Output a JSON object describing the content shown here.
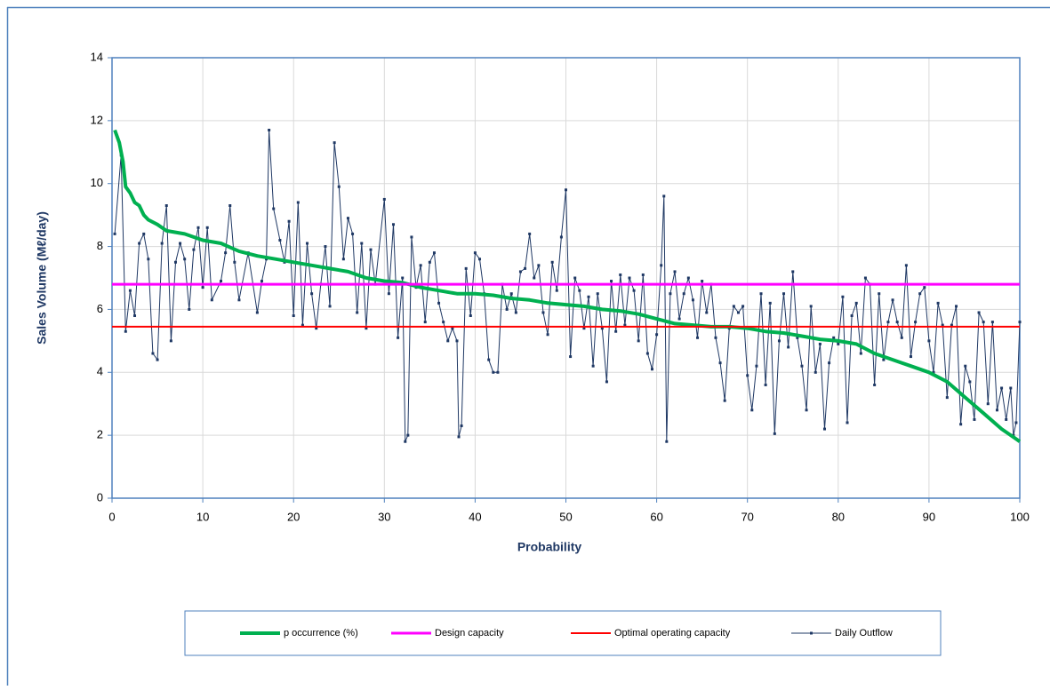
{
  "chart_data": {
    "type": "line",
    "y_label": "Sales Volume (Mℓ/day)",
    "x_label": "Probability",
    "xlim": [
      0,
      100
    ],
    "xticks": [
      0,
      10,
      20,
      30,
      40,
      50,
      60,
      70,
      80,
      90,
      100
    ],
    "ylim": [
      0,
      14
    ],
    "yticks": [
      0,
      2,
      4,
      6,
      8,
      10,
      12,
      14
    ],
    "grid": true,
    "legend": "bottom",
    "series": [
      {
        "name": "p occurrence (%)",
        "color": "#00b050",
        "line_width": 4,
        "x": [
          0.3,
          0.8,
          1.2,
          1.5,
          2,
          2.5,
          3,
          3.5,
          4,
          5,
          6,
          8,
          10,
          12,
          14,
          16,
          18,
          20,
          22,
          24,
          26,
          28,
          30,
          32,
          34,
          36,
          38,
          40,
          42,
          44,
          46,
          48,
          50,
          52,
          54,
          56,
          58,
          60,
          62,
          64,
          66,
          68,
          70,
          72,
          74,
          76,
          78,
          80,
          82,
          84,
          86,
          88,
          90,
          92,
          94,
          96,
          98,
          99,
          100
        ],
        "values": [
          11.7,
          11.3,
          10.7,
          9.9,
          9.7,
          9.4,
          9.3,
          9.0,
          8.85,
          8.7,
          8.5,
          8.4,
          8.2,
          8.1,
          7.85,
          7.7,
          7.6,
          7.5,
          7.4,
          7.3,
          7.2,
          7.0,
          6.9,
          6.85,
          6.7,
          6.6,
          6.5,
          6.5,
          6.45,
          6.35,
          6.3,
          6.2,
          6.15,
          6.1,
          6.0,
          5.95,
          5.85,
          5.7,
          5.55,
          5.5,
          5.45,
          5.45,
          5.4,
          5.3,
          5.25,
          5.15,
          5.05,
          5.0,
          4.9,
          4.6,
          4.4,
          4.2,
          4.0,
          3.7,
          3.2,
          2.7,
          2.2,
          2.0,
          1.8
        ]
      },
      {
        "name": "Design capacity",
        "color": "#ff00ff",
        "line_width": 3,
        "x": [
          0,
          100
        ],
        "values": [
          6.8,
          6.8
        ]
      },
      {
        "name": "Optimal operating capacity",
        "color": "#ff0000",
        "line_width": 2,
        "x": [
          0,
          100
        ],
        "values": [
          5.45,
          5.45
        ]
      },
      {
        "name": "Daily Outflow",
        "color": "#1f3864",
        "line_width": 1,
        "marker": "square",
        "x": [
          0.3,
          1,
          1.5,
          2,
          2.5,
          3,
          3.5,
          4,
          4.5,
          5,
          5.5,
          6,
          6.5,
          7,
          7.5,
          8,
          8.5,
          9,
          9.5,
          10,
          10.5,
          11,
          12,
          12.5,
          13,
          13.5,
          14,
          15,
          16,
          16.5,
          17,
          17.3,
          17.8,
          18.5,
          19,
          19.5,
          20,
          20.5,
          21,
          21.5,
          22,
          22.5,
          23,
          23.5,
          24,
          24.5,
          25,
          25.5,
          26,
          26.5,
          27,
          27.5,
          28,
          28.5,
          29,
          30,
          30.5,
          31,
          31.5,
          32,
          32.3,
          32.6,
          33,
          33.5,
          34,
          34.5,
          35,
          35.5,
          36,
          36.5,
          37,
          37.5,
          38,
          38.2,
          38.5,
          39,
          39.5,
          40,
          40.5,
          41,
          41.5,
          42,
          42.5,
          43,
          43.5,
          44,
          44.5,
          45,
          45.5,
          46,
          46.5,
          47,
          47.5,
          48,
          48.5,
          49,
          49.5,
          50,
          50.5,
          51,
          51.5,
          52,
          52.5,
          53,
          53.5,
          54,
          54.5,
          55,
          55.5,
          56,
          56.5,
          57,
          57.5,
          58,
          58.5,
          59,
          59.5,
          60,
          60.5,
          60.8,
          61.1,
          61.5,
          62,
          62.5,
          63,
          63.5,
          64,
          64.5,
          65,
          65.5,
          66,
          66.5,
          67,
          67.5,
          68,
          68.5,
          69,
          69.5,
          70,
          70.5,
          71,
          71.5,
          72,
          72.5,
          73,
          73.5,
          74,
          74.5,
          75,
          75.5,
          76,
          76.5,
          77,
          77.5,
          78,
          78.5,
          79,
          79.5,
          80,
          80.5,
          81,
          81.5,
          82,
          82.5,
          83,
          83.5,
          84,
          84.5,
          85,
          85.5,
          86,
          86.5,
          87,
          87.5,
          88,
          88.5,
          89,
          89.5,
          90,
          90.5,
          91,
          91.5,
          92,
          92.5,
          93,
          93.5,
          94,
          94.5,
          95,
          95.5,
          96,
          96.5,
          97,
          97.5,
          98,
          98.5,
          99,
          99.3,
          99.6,
          100
        ],
        "values": [
          8.4,
          10.9,
          5.3,
          6.6,
          5.8,
          8.1,
          8.4,
          7.6,
          4.6,
          4.4,
          8.1,
          9.3,
          5.0,
          7.5,
          8.1,
          7.6,
          6.0,
          7.9,
          8.6,
          6.7,
          8.6,
          6.3,
          6.9,
          7.8,
          9.3,
          7.5,
          6.3,
          7.8,
          5.9,
          6.9,
          7.6,
          11.7,
          9.2,
          8.2,
          7.5,
          8.8,
          5.8,
          9.4,
          5.5,
          8.1,
          6.5,
          5.4,
          6.8,
          8.0,
          6.1,
          11.3,
          9.9,
          7.6,
          8.9,
          8.4,
          5.9,
          8.1,
          5.4,
          7.9,
          6.8,
          9.5,
          6.5,
          8.7,
          5.1,
          7.0,
          1.8,
          2.0,
          8.3,
          6.7,
          7.4,
          5.6,
          7.5,
          7.8,
          6.2,
          5.6,
          5.0,
          5.4,
          5.0,
          1.95,
          2.3,
          7.3,
          5.8,
          7.8,
          7.6,
          6.5,
          4.4,
          4.0,
          4.0,
          6.8,
          6.0,
          6.5,
          5.9,
          7.2,
          7.3,
          8.4,
          7.0,
          7.4,
          5.9,
          5.2,
          7.5,
          6.6,
          8.3,
          9.8,
          4.5,
          7.0,
          6.6,
          5.4,
          6.4,
          4.2,
          6.5,
          5.4,
          3.7,
          6.9,
          5.3,
          7.1,
          5.5,
          7.0,
          6.6,
          5.0,
          7.1,
          4.6,
          4.1,
          5.2,
          7.4,
          9.6,
          1.8,
          6.5,
          7.2,
          5.7,
          6.5,
          7.0,
          6.3,
          5.1,
          6.9,
          5.9,
          6.8,
          5.1,
          4.3,
          3.1,
          5.4,
          6.1,
          5.9,
          6.1,
          3.9,
          2.8,
          4.2,
          6.5,
          3.6,
          6.2,
          2.05,
          5.0,
          6.5,
          4.8,
          7.2,
          5.1,
          4.2,
          2.8,
          6.1,
          4.0,
          4.9,
          2.2,
          4.3,
          5.1,
          4.9,
          6.4,
          2.4,
          5.8,
          6.2,
          4.6,
          7.0,
          6.8,
          3.6,
          6.5,
          4.4,
          5.6,
          6.3,
          5.6,
          5.1,
          7.4,
          4.5,
          5.6,
          6.5,
          6.7,
          5.0,
          4.0,
          6.2,
          5.5,
          3.2,
          5.5,
          6.1,
          2.35,
          4.2,
          3.7,
          2.5,
          5.9,
          5.6,
          3.0,
          5.6,
          2.8,
          3.5,
          2.5,
          3.5,
          2.0,
          2.4,
          5.6
        ]
      }
    ]
  }
}
